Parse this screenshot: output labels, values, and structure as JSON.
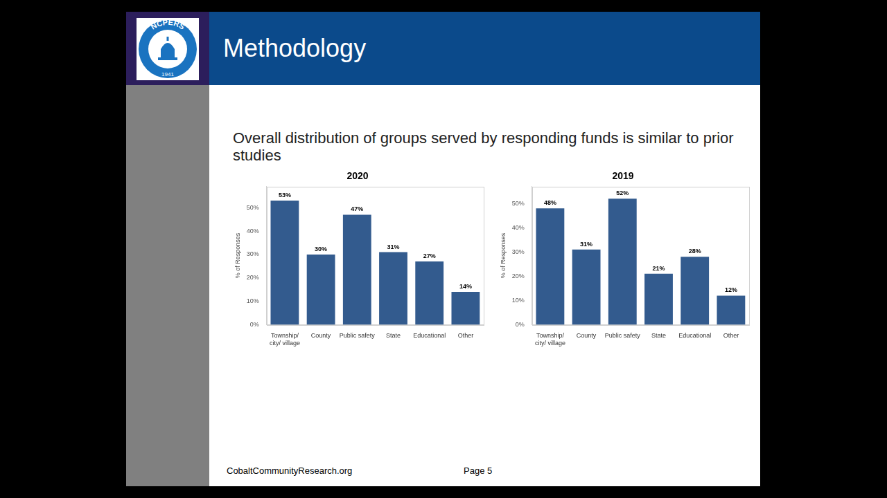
{
  "slide": {
    "logo_text": "NCPERS",
    "logo_year": "1941",
    "title": "Methodology",
    "subtitle": "Overall distribution of groups served by responding funds is similar to prior studies",
    "footer_left": "CobaltCommunityResearch.org",
    "footer_right": "Page 5"
  },
  "chart_data": [
    {
      "type": "bar",
      "title": "2020",
      "y_label": "% of Responses",
      "categories": [
        "Township/ city/ village",
        "County",
        "Public safety",
        "State",
        "Educational",
        "Other"
      ],
      "values": [
        53,
        30,
        47,
        31,
        27,
        14
      ],
      "value_labels": [
        "53%",
        "30%",
        "47%",
        "31%",
        "27%",
        "14%"
      ],
      "color": "#335b8e",
      "ylim": [
        0,
        59
      ],
      "yticks": [
        {
          "value": 0,
          "label": "0%"
        },
        {
          "value": 10,
          "label": "10%"
        },
        {
          "value": 20,
          "label": "20%"
        },
        {
          "value": 30,
          "label": "30%"
        },
        {
          "value": 40,
          "label": "40%"
        },
        {
          "value": 50,
          "label": "50%"
        }
      ],
      "grid": false,
      "data_labels": true
    },
    {
      "type": "bar",
      "title": "2019",
      "y_label": "% of Responses",
      "categories": [
        "Township/ city/ village",
        "County",
        "Public safety",
        "State",
        "Educational",
        "Other"
      ],
      "values": [
        48,
        31,
        52,
        21,
        28,
        12
      ],
      "value_labels": [
        "48%",
        "31%",
        "52%",
        "21%",
        "28%",
        "12%"
      ],
      "color": "#335b8e",
      "ylim": [
        0,
        57
      ],
      "yticks": [
        {
          "value": 0,
          "label": "0%"
        },
        {
          "value": 10,
          "label": "10%"
        },
        {
          "value": 20,
          "label": "20%"
        },
        {
          "value": 30,
          "label": "30%"
        },
        {
          "value": 40,
          "label": "40%"
        },
        {
          "value": 50,
          "label": "50%"
        }
      ],
      "grid": false,
      "data_labels": true
    }
  ]
}
